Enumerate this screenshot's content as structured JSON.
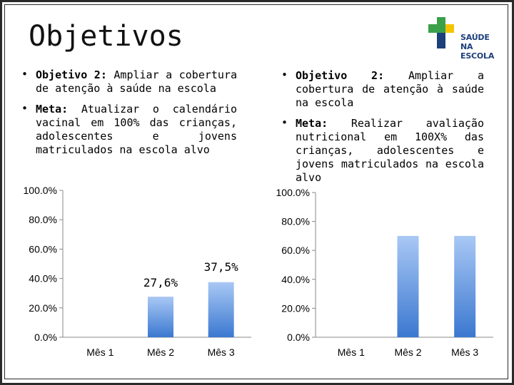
{
  "title": "Objetivos",
  "logo": {
    "line1": "SAÚDE",
    "line2": "NA ESCOLA",
    "colors": {
      "green": "#3aa04a",
      "yellow": "#f4c400",
      "blue": "#1d3f7a"
    }
  },
  "left": {
    "objetivo_label": "Objetivo 2:",
    "objetivo_text": "Ampliar a cobertura de atenção à saúde na escola",
    "meta_label": "Meta:",
    "meta_text": "Atualizar o calendário vacinal em 100% das crianças, adolescentes e jovens matriculados na escola alvo"
  },
  "right": {
    "objetivo_label": "Objetivo 2:",
    "objetivo_text": "Ampliar a cobertura de atenção à saúde na escola",
    "meta_label": "Meta:",
    "meta_text": "Realizar avaliação nutricional em 100X% das crianças, adolescentes e jovens matriculados na escola alvo"
  },
  "bullet_char": "•",
  "chart_data": [
    {
      "type": "bar",
      "categories": [
        "Mês 1",
        "Mês 2",
        "Mês 3"
      ],
      "values": [
        0,
        27.6,
        37.5
      ],
      "data_labels": [
        "",
        "27,6%",
        "37,5%"
      ],
      "yticks": [
        "0.0%",
        "20.0%",
        "40.0%",
        "60.0%",
        "80.0%",
        "100.0%"
      ],
      "ylim": [
        0,
        100
      ],
      "grid": false,
      "bar_color_top": "#a9c8f5",
      "bar_color_bottom": "#3b78d0"
    },
    {
      "type": "bar",
      "categories": [
        "Mês 1",
        "Mês 2",
        "Mês 3"
      ],
      "values": [
        0,
        70,
        70
      ],
      "data_labels": [
        "",
        "",
        ""
      ],
      "yticks": [
        "0.0%",
        "20.0%",
        "40.0%",
        "60.0%",
        "80.0%",
        "100.0%"
      ],
      "ylim": [
        0,
        100
      ],
      "grid": false,
      "bar_color_top": "#a9c8f5",
      "bar_color_bottom": "#3b78d0"
    }
  ]
}
